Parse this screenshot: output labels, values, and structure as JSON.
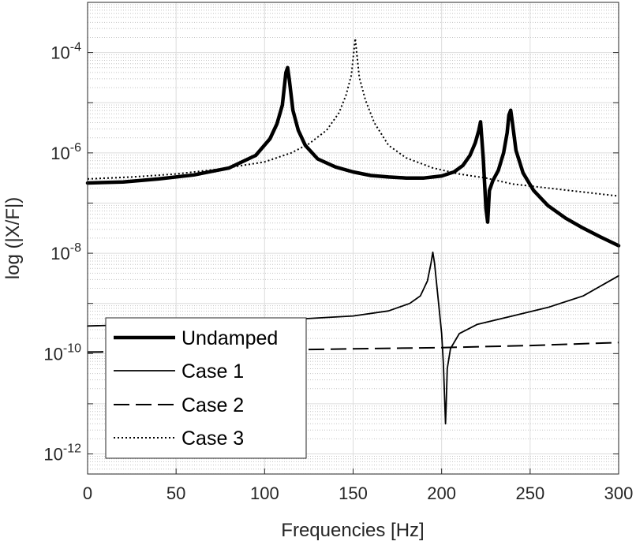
{
  "chart_data": {
    "type": "line",
    "title": "",
    "xlabel": "Frequencies [Hz]",
    "ylabel": "log (|X/F|)",
    "xlim": [
      0,
      300
    ],
    "ylim_log10": [
      -12.4,
      -3
    ],
    "y_scale": "log",
    "grid": true,
    "legend_position": "bottom-left",
    "x_ticks": [
      {
        "value": 0,
        "label": "0"
      },
      {
        "value": 50,
        "label": "50"
      },
      {
        "value": 100,
        "label": "100"
      },
      {
        "value": 150,
        "label": "150"
      },
      {
        "value": 200,
        "label": "200"
      },
      {
        "value": 250,
        "label": "250"
      },
      {
        "value": 300,
        "label": "300"
      }
    ],
    "y_ticks": [
      {
        "exp": -12,
        "base": "10",
        "power": "-12"
      },
      {
        "exp": -10,
        "base": "10",
        "power": "-10"
      },
      {
        "exp": -8,
        "base": "10",
        "power": "-8"
      },
      {
        "exp": -6,
        "base": "10",
        "power": "-6"
      },
      {
        "exp": -4,
        "base": "10",
        "power": "-4"
      }
    ],
    "series": [
      {
        "name": "Undamped",
        "style": "solid-thick",
        "color": "#000000",
        "points": [
          [
            0,
            -6.6
          ],
          [
            20,
            -6.58
          ],
          [
            40,
            -6.52
          ],
          [
            60,
            -6.44
          ],
          [
            80,
            -6.3
          ],
          [
            95,
            -6.05
          ],
          [
            103,
            -5.72
          ],
          [
            107,
            -5.42
          ],
          [
            110,
            -5.05
          ],
          [
            112,
            -4.4
          ],
          [
            113,
            -4.3
          ],
          [
            114,
            -4.55
          ],
          [
            116,
            -5.15
          ],
          [
            119,
            -5.55
          ],
          [
            123,
            -5.85
          ],
          [
            130,
            -6.12
          ],
          [
            140,
            -6.28
          ],
          [
            150,
            -6.38
          ],
          [
            160,
            -6.45
          ],
          [
            170,
            -6.48
          ],
          [
            180,
            -6.5
          ],
          [
            190,
            -6.5
          ],
          [
            200,
            -6.46
          ],
          [
            207,
            -6.38
          ],
          [
            212,
            -6.25
          ],
          [
            216,
            -6.05
          ],
          [
            219,
            -5.8
          ],
          [
            221,
            -5.55
          ],
          [
            222,
            -5.38
          ],
          [
            223.5,
            -6.1
          ],
          [
            225,
            -7.1
          ],
          [
            226,
            -7.38
          ],
          [
            227,
            -6.75
          ],
          [
            229,
            -6.55
          ],
          [
            232,
            -6.35
          ],
          [
            235,
            -6.0
          ],
          [
            237,
            -5.6
          ],
          [
            238,
            -5.25
          ],
          [
            239,
            -5.15
          ],
          [
            240,
            -5.4
          ],
          [
            242,
            -5.95
          ],
          [
            246,
            -6.4
          ],
          [
            252,
            -6.75
          ],
          [
            260,
            -7.05
          ],
          [
            270,
            -7.3
          ],
          [
            280,
            -7.5
          ],
          [
            290,
            -7.68
          ],
          [
            300,
            -7.85
          ]
        ]
      },
      {
        "name": "Case 1",
        "style": "solid-thin",
        "color": "#000000",
        "points": [
          [
            0,
            -9.45
          ],
          [
            50,
            -9.4
          ],
          [
            100,
            -9.35
          ],
          [
            150,
            -9.25
          ],
          [
            170,
            -9.15
          ],
          [
            182,
            -9.0
          ],
          [
            188,
            -8.85
          ],
          [
            192,
            -8.55
          ],
          [
            194,
            -8.2
          ],
          [
            195,
            -7.98
          ],
          [
            196,
            -8.2
          ],
          [
            198,
            -8.9
          ],
          [
            200,
            -9.6
          ],
          [
            201,
            -10.2
          ],
          [
            201.8,
            -11.0
          ],
          [
            202.2,
            -11.4
          ],
          [
            202.6,
            -11.0
          ],
          [
            203.2,
            -10.3
          ],
          [
            205,
            -9.9
          ],
          [
            210,
            -9.6
          ],
          [
            220,
            -9.42
          ],
          [
            240,
            -9.25
          ],
          [
            260,
            -9.08
          ],
          [
            280,
            -8.85
          ],
          [
            300,
            -8.45
          ]
        ]
      },
      {
        "name": "Case 2",
        "style": "dashed",
        "color": "#000000",
        "points": [
          [
            0,
            -9.97
          ],
          [
            100,
            -9.93
          ],
          [
            200,
            -9.88
          ],
          [
            250,
            -9.84
          ],
          [
            300,
            -9.78
          ]
        ]
      },
      {
        "name": "Case 3",
        "style": "dotted",
        "color": "#000000",
        "points": [
          [
            0,
            -6.52
          ],
          [
            25,
            -6.48
          ],
          [
            50,
            -6.42
          ],
          [
            75,
            -6.32
          ],
          [
            100,
            -6.18
          ],
          [
            115,
            -6.0
          ],
          [
            125,
            -5.82
          ],
          [
            135,
            -5.55
          ],
          [
            142,
            -5.2
          ],
          [
            146,
            -4.85
          ],
          [
            149,
            -4.45
          ],
          [
            150.5,
            -3.95
          ],
          [
            151.2,
            -3.72
          ],
          [
            152,
            -4.0
          ],
          [
            153.5,
            -4.5
          ],
          [
            157,
            -4.95
          ],
          [
            162,
            -5.4
          ],
          [
            170,
            -5.85
          ],
          [
            180,
            -6.1
          ],
          [
            195,
            -6.3
          ],
          [
            210,
            -6.42
          ],
          [
            225,
            -6.5
          ],
          [
            240,
            -6.62
          ],
          [
            260,
            -6.7
          ],
          [
            280,
            -6.78
          ],
          [
            300,
            -6.86
          ]
        ]
      }
    ]
  }
}
